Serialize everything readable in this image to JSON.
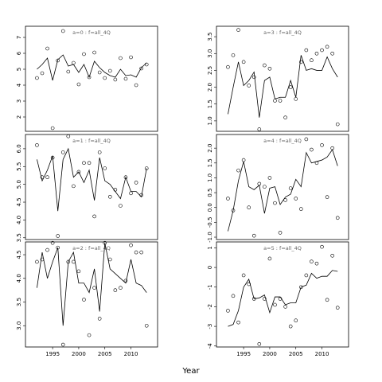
{
  "xlabel": "Year",
  "chart_data": [
    {
      "type": "line",
      "title": "a=0  :  f=all_4Q",
      "x": [
        1992,
        1993,
        1994,
        1995,
        1996,
        1997,
        1998,
        1999,
        2000,
        2001,
        2002,
        2003,
        2004,
        2005,
        2006,
        2007,
        2008,
        2009,
        2010,
        2011,
        2012,
        2013
      ],
      "series": [
        {
          "style": "points",
          "color": "#000000",
          "values": [
            4.45,
            4.75,
            6.3,
            1.3,
            5.55,
            7.4,
            4.85,
            5.4,
            4.05,
            5.95,
            4.5,
            6.05,
            4.8,
            4.45,
            4.9,
            4.35,
            5.7,
            4.4,
            5.75,
            4.0,
            5.05,
            5.3
          ]
        },
        {
          "style": "line",
          "color": "#000000",
          "values": [
            5.0,
            5.3,
            5.7,
            4.3,
            5.6,
            5.9,
            5.2,
            5.3,
            4.8,
            5.3,
            4.5,
            5.5,
            5.1,
            4.8,
            4.6,
            4.5,
            5.0,
            4.6,
            4.65,
            4.5,
            5.1,
            5.4
          ]
        }
      ],
      "xlim": [
        1989.8,
        2015.1
      ],
      "ylim": [
        1.1,
        7.7
      ],
      "yticks": [
        2,
        3,
        4,
        5,
        6,
        7
      ]
    },
    {
      "type": "line",
      "title": "a=1  :  f=all_4Q",
      "x": [
        1992,
        1993,
        1994,
        1995,
        1996,
        1997,
        1998,
        1999,
        2000,
        2001,
        2002,
        2003,
        2004,
        2005,
        2006,
        2007,
        2008,
        2009,
        2010,
        2011,
        2012,
        2013
      ],
      "series": [
        {
          "style": "points",
          "color": "#000000",
          "values": [
            6.1,
            5.2,
            5.2,
            5.75,
            3.55,
            5.9,
            6.35,
            4.95,
            5.35,
            5.6,
            5.6,
            4.1,
            5.9,
            5.45,
            4.65,
            4.85,
            4.4,
            5.2,
            4.75,
            5.05,
            4.7,
            5.45
          ]
        },
        {
          "style": "line",
          "color": "#000000",
          "values": [
            5.7,
            5.1,
            5.4,
            5.8,
            4.25,
            5.7,
            6.0,
            5.2,
            5.35,
            5.05,
            5.4,
            4.55,
            5.75,
            5.1,
            5.0,
            4.8,
            4.6,
            5.2,
            4.8,
            4.8,
            4.65,
            5.45
          ]
        }
      ],
      "xlim": [
        1989.8,
        2015.1
      ],
      "ylim": [
        3.45,
        6.4
      ],
      "yticks": [
        3.5,
        {
          "value": 4,
          "label": "4.0"
        },
        4.5,
        {
          "value": 5,
          "label": "5.0"
        },
        5.5,
        {
          "value": 6,
          "label": "6.0"
        }
      ]
    },
    {
      "type": "line",
      "title": "a=2  :  f=all_4Q",
      "x": [
        1992,
        1993,
        1994,
        1995,
        1996,
        1997,
        1998,
        1999,
        2000,
        2001,
        2002,
        2003,
        2004,
        2005,
        2006,
        2007,
        2008,
        2009,
        2010,
        2011,
        2012,
        2013
      ],
      "series": [
        {
          "style": "points",
          "color": "#000000",
          "values": [
            4.35,
            4.4,
            4.6,
            4.75,
            4.65,
            2.6,
            4.35,
            4.35,
            4.15,
            3.55,
            2.8,
            3.8,
            3.15,
            4.75,
            4.4,
            3.75,
            3.8,
            3.95,
            4.7,
            4.55,
            4.55,
            3.0
          ]
        },
        {
          "style": "line",
          "color": "#000000",
          "values": [
            3.8,
            4.55,
            4.0,
            4.35,
            4.65,
            3.0,
            4.35,
            4.55,
            3.9,
            3.9,
            3.7,
            4.2,
            3.3,
            4.75,
            4.2,
            4.1,
            4.0,
            3.9,
            4.4,
            3.9,
            3.85,
            3.7
          ]
        }
      ],
      "xlim": [
        1989.8,
        2015.1
      ],
      "ylim": [
        2.55,
        4.77
      ],
      "xticks": [
        1995,
        2000,
        2005,
        2010
      ],
      "yticks": [
        {
          "value": 3,
          "label": "3.0"
        },
        3.5,
        {
          "value": 4,
          "label": "4.0"
        },
        4.5
      ]
    },
    {
      "type": "line",
      "title": "a=3  :  f=all_4Q",
      "x": [
        1992,
        1993,
        1994,
        1995,
        1996,
        1997,
        1998,
        1999,
        2000,
        2001,
        2002,
        2003,
        2004,
        2005,
        2006,
        2007,
        2008,
        2009,
        2010,
        2011,
        2012,
        2013
      ],
      "series": [
        {
          "style": "points",
          "color": "#000000",
          "values": [
            2.6,
            2.95,
            3.7,
            2.75,
            2.05,
            2.3,
            0.75,
            2.65,
            2.55,
            1.6,
            1.6,
            1.1,
            2.0,
            1.65,
            2.75,
            3.1,
            2.8,
            3.0,
            3.1,
            3.2,
            3.0,
            0.9
          ]
        },
        {
          "style": "line",
          "color": "#000000",
          "values": [
            1.2,
            2.0,
            2.75,
            2.05,
            2.2,
            2.45,
            1.1,
            2.2,
            2.3,
            1.65,
            1.7,
            1.7,
            2.2,
            1.7,
            2.95,
            2.5,
            2.55,
            2.5,
            2.5,
            2.9,
            2.55,
            2.3
          ]
        }
      ],
      "xlim": [
        1989.8,
        2015.1
      ],
      "ylim": [
        0.69,
        3.81
      ],
      "yticks": [
        {
          "value": 1,
          "label": "1.0"
        },
        1.5,
        {
          "value": 2,
          "label": "2.0"
        },
        2.5,
        {
          "value": 3,
          "label": "3.0"
        },
        3.5
      ]
    },
    {
      "type": "line",
      "title": "a=4  :  f=all_4Q",
      "x": [
        1992,
        1993,
        1994,
        1995,
        1996,
        1997,
        1998,
        1999,
        2000,
        2001,
        2002,
        2003,
        2004,
        2005,
        2006,
        2007,
        2008,
        2009,
        2010,
        2011,
        2012,
        2013
      ],
      "series": [
        {
          "style": "points",
          "color": "#000000",
          "values": [
            0.3,
            -0.1,
            1.25,
            1.6,
            0.0,
            -0.95,
            0.8,
            0.7,
            1.0,
            0.15,
            -0.85,
            0.25,
            0.65,
            0.3,
            -0.05,
            2.3,
            1.95,
            1.5,
            2.1,
            0.35,
            2.0,
            -0.35
          ]
        },
        {
          "style": "line",
          "color": "#000000",
          "values": [
            -0.8,
            -0.1,
            0.9,
            1.55,
            0.7,
            0.6,
            0.75,
            -0.2,
            0.65,
            0.7,
            0.1,
            0.35,
            0.45,
            0.95,
            0.7,
            1.85,
            1.5,
            1.55,
            1.6,
            1.7,
            1.95,
            1.4
          ]
        }
      ],
      "xlim": [
        1989.8,
        2015.1
      ],
      "ylim": [
        -1.08,
        2.46
      ],
      "yticks": [
        {
          "value": -1,
          "label": "-1.0"
        },
        -0.5,
        {
          "value": 0,
          "label": "0.0"
        },
        0.5,
        {
          "value": 1,
          "label": "1.0"
        },
        1.5,
        {
          "value": 2,
          "label": "2.0"
        }
      ]
    },
    {
      "type": "line",
      "title": "a=5  :  f=all_4Q",
      "x": [
        1992,
        1993,
        1994,
        1995,
        1996,
        1997,
        1998,
        1999,
        2000,
        2001,
        2002,
        2003,
        2004,
        2005,
        2006,
        2007,
        2008,
        2009,
        2010,
        2011,
        2012,
        2013
      ],
      "series": [
        {
          "style": "points",
          "color": "#000000",
          "values": [
            -2.2,
            -1.45,
            -2.8,
            -0.4,
            -0.85,
            -1.6,
            -3.9,
            -1.6,
            0.45,
            -1.9,
            -1.6,
            -2.0,
            -3.0,
            -2.7,
            -1.0,
            -0.4,
            0.3,
            0.2,
            1.05,
            -1.65,
            0.6,
            -2.05
          ]
        },
        {
          "style": "line",
          "color": "#000000",
          "values": [
            -3.0,
            -2.9,
            -2.2,
            -1.0,
            -0.6,
            -1.6,
            -1.55,
            -1.4,
            -2.3,
            -1.5,
            -1.5,
            -1.9,
            -1.8,
            -1.8,
            -1.0,
            -0.9,
            -0.3,
            -0.55,
            -0.45,
            -0.45,
            -0.15,
            -0.2
          ]
        }
      ],
      "xlim": [
        1989.8,
        2015.1
      ],
      "ylim": [
        -4.05,
        1.3
      ],
      "xticks": [
        1995,
        2000,
        2005,
        2010
      ],
      "yticks": [
        -4,
        -3,
        -2,
        -1,
        0,
        1
      ]
    }
  ]
}
